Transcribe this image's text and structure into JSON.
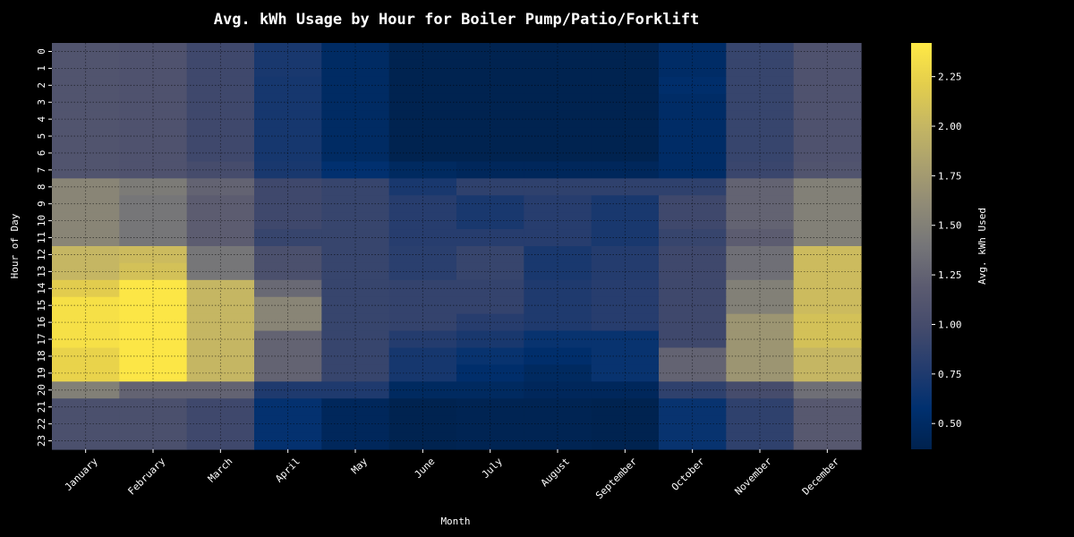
{
  "chart_data": {
    "type": "heatmap",
    "title": "Avg. kWh Usage by Hour for Boiler Pump/Patio/Forklift",
    "xlabel": "Month",
    "ylabel": "Hour of Day",
    "colorbar_label": "Avg. kWh Used",
    "colormap": "cividis",
    "colors": {
      "background": "#000000",
      "text": "#ffffff",
      "grid": "#000000"
    },
    "grid": true,
    "colorbar_range": [
      0.37,
      2.42
    ],
    "colorbar_ticks": [
      "0.50",
      "0.75",
      "1.00",
      "1.25",
      "1.50",
      "1.75",
      "2.00",
      "2.25"
    ],
    "months": [
      "January",
      "February",
      "March",
      "April",
      "May",
      "June",
      "July",
      "August",
      "September",
      "October",
      "November",
      "December"
    ],
    "hours": [
      "0",
      "1",
      "2",
      "3",
      "4",
      "5",
      "6",
      "7",
      "8",
      "9",
      "10",
      "11",
      "12",
      "13",
      "14",
      "15",
      "16",
      "17",
      "18",
      "19",
      "20",
      "21",
      "22",
      "23"
    ],
    "values": [
      [
        1.1,
        1.08,
        0.95,
        0.72,
        0.5,
        0.38,
        0.38,
        0.38,
        0.38,
        0.52,
        0.9,
        1.08
      ],
      [
        1.1,
        1.08,
        0.95,
        0.72,
        0.5,
        0.38,
        0.38,
        0.38,
        0.38,
        0.52,
        0.9,
        1.08
      ],
      [
        1.1,
        1.08,
        0.95,
        0.7,
        0.5,
        0.38,
        0.38,
        0.38,
        0.38,
        0.55,
        0.9,
        1.08
      ],
      [
        1.1,
        1.08,
        0.95,
        0.7,
        0.5,
        0.38,
        0.38,
        0.38,
        0.38,
        0.52,
        0.9,
        1.08
      ],
      [
        1.1,
        1.08,
        0.95,
        0.7,
        0.5,
        0.38,
        0.38,
        0.38,
        0.38,
        0.52,
        0.9,
        1.08
      ],
      [
        1.1,
        1.08,
        0.95,
        0.7,
        0.5,
        0.38,
        0.38,
        0.38,
        0.38,
        0.52,
        0.9,
        1.08
      ],
      [
        1.1,
        1.08,
        0.95,
        0.7,
        0.5,
        0.38,
        0.38,
        0.38,
        0.38,
        0.52,
        0.9,
        1.08
      ],
      [
        1.1,
        1.08,
        1.0,
        0.72,
        0.58,
        0.48,
        0.45,
        0.45,
        0.45,
        0.52,
        0.92,
        1.1
      ],
      [
        1.55,
        1.45,
        1.25,
        0.95,
        0.9,
        0.72,
        0.85,
        0.85,
        0.85,
        0.85,
        1.25,
        1.5
      ],
      [
        1.55,
        1.4,
        1.2,
        0.95,
        0.9,
        0.8,
        0.72,
        0.8,
        0.72,
        0.95,
        1.25,
        1.5
      ],
      [
        1.55,
        1.4,
        1.2,
        0.95,
        0.9,
        0.8,
        0.72,
        0.8,
        0.72,
        0.95,
        1.25,
        1.5
      ],
      [
        1.55,
        1.4,
        1.2,
        0.9,
        0.9,
        0.8,
        0.8,
        0.8,
        0.72,
        0.9,
        1.2,
        1.5
      ],
      [
        2.0,
        2.05,
        1.4,
        1.05,
        0.9,
        0.82,
        0.9,
        0.72,
        0.78,
        0.95,
        1.35,
        2.05
      ],
      [
        2.0,
        2.1,
        1.4,
        1.05,
        0.9,
        0.82,
        0.9,
        0.72,
        0.78,
        0.95,
        1.35,
        2.05
      ],
      [
        2.2,
        2.4,
        2.0,
        1.3,
        0.9,
        0.88,
        0.88,
        0.75,
        0.8,
        0.95,
        1.5,
        2.05
      ],
      [
        2.35,
        2.4,
        2.0,
        1.55,
        0.9,
        0.88,
        0.88,
        0.75,
        0.8,
        0.95,
        1.5,
        2.05
      ],
      [
        2.35,
        2.4,
        2.0,
        1.55,
        0.9,
        0.88,
        0.8,
        0.75,
        0.8,
        0.95,
        1.7,
        2.1
      ],
      [
        2.35,
        2.4,
        2.0,
        1.25,
        0.9,
        0.78,
        0.72,
        0.62,
        0.62,
        0.95,
        1.7,
        2.1
      ],
      [
        2.25,
        2.4,
        2.0,
        1.25,
        0.9,
        0.7,
        0.62,
        0.55,
        0.62,
        1.25,
        1.7,
        2.0
      ],
      [
        2.25,
        2.4,
        2.0,
        1.25,
        0.9,
        0.7,
        0.55,
        0.48,
        0.62,
        1.25,
        1.7,
        2.0
      ],
      [
        1.5,
        1.25,
        1.25,
        0.75,
        0.75,
        0.48,
        0.48,
        0.45,
        0.45,
        0.85,
        1.0,
        1.35
      ],
      [
        1.05,
        1.05,
        0.95,
        0.6,
        0.45,
        0.38,
        0.4,
        0.4,
        0.38,
        0.62,
        0.85,
        1.15
      ],
      [
        1.05,
        1.05,
        0.95,
        0.6,
        0.45,
        0.38,
        0.4,
        0.4,
        0.38,
        0.62,
        0.85,
        1.15
      ],
      [
        1.05,
        1.05,
        0.95,
        0.6,
        0.45,
        0.38,
        0.4,
        0.4,
        0.38,
        0.62,
        0.85,
        1.15
      ]
    ]
  }
}
